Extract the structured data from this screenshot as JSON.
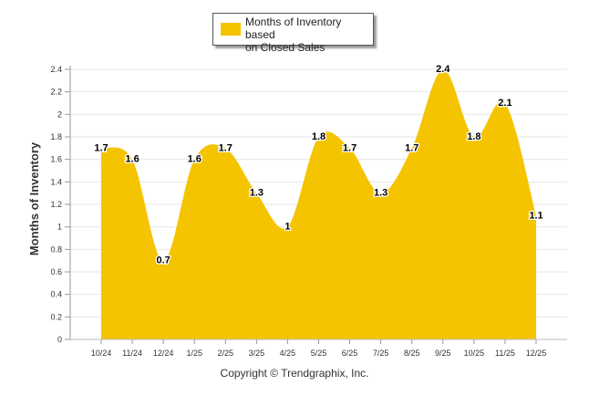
{
  "chart_data": {
    "type": "area",
    "categories": [
      "10/24",
      "11/24",
      "12/24",
      "1/25",
      "2/25",
      "3/25",
      "4/25",
      "5/25",
      "6/25",
      "7/25",
      "8/25",
      "9/25",
      "10/25",
      "11/25",
      "12/25"
    ],
    "values": [
      1.7,
      1.6,
      0.7,
      1.6,
      1.7,
      1.3,
      1.0,
      1.8,
      1.7,
      1.3,
      1.7,
      2.4,
      1.8,
      2.1,
      1.1
    ],
    "data_labels": [
      "1.7",
      "1.6",
      "0.7",
      "1.6",
      "1.7",
      "1.3",
      "1",
      "1.8",
      "1.7",
      "1.3",
      "1.7",
      "2.4",
      "1.8",
      "2.1",
      "1.1"
    ],
    "series_name": "Months of Inventory based on Closed Sales",
    "legend_lines": [
      "Months of Inventory based",
      "on Closed Sales"
    ],
    "ylabel": "Months of Inventory",
    "ylim": [
      0,
      2.4
    ],
    "yticks": [
      0,
      0.2,
      0.4,
      0.6,
      0.8,
      1,
      1.2,
      1.4,
      1.6,
      1.8,
      2,
      2.2,
      2.4
    ],
    "ytick_labels": [
      "0",
      "0.2",
      "0.4",
      "0.6",
      "0.8",
      "1",
      "1.2",
      "1.4",
      "1.6",
      "1.8",
      "2",
      "2.2",
      "2.4"
    ],
    "grid": true,
    "legend_position": "top-center",
    "color": "#f5c400"
  },
  "footer": {
    "copyright": "Copyright © Trendgraphix, Inc."
  }
}
